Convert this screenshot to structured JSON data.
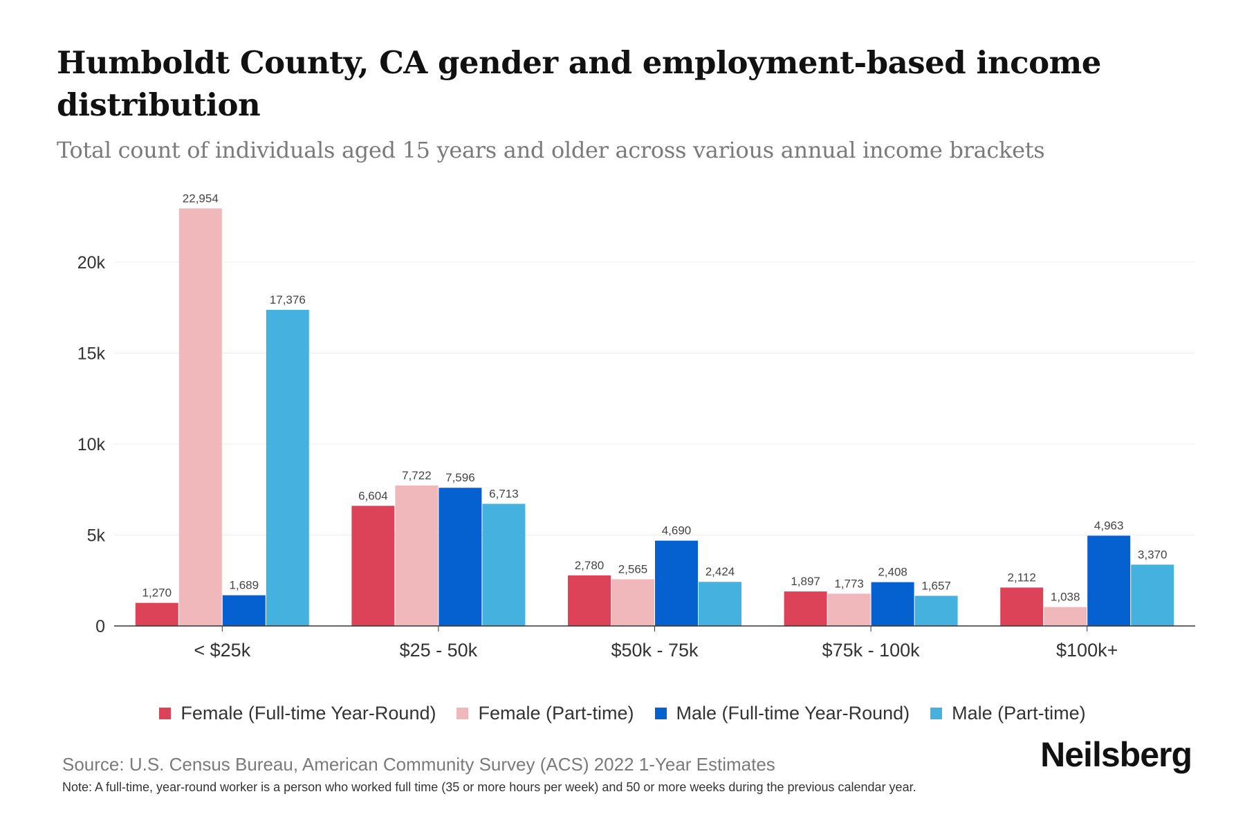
{
  "header": {
    "title": "Humboldt County, CA gender and employment-based income distribution",
    "subtitle": "Total count of individuals aged 15 years and older across various annual income brackets"
  },
  "footer": {
    "source": "Source: U.S. Census Bureau, American Community Survey (ACS) 2022 1-Year Estimates",
    "note": "Note: A full-time, year-round worker is a person who worked full time (35 or more hours per week) and 50 or more weeks during the previous calendar year.",
    "brand": "Neilsberg"
  },
  "chart_data": {
    "type": "bar",
    "title": "Humboldt County, CA gender and employment-based income distribution",
    "subtitle": "Total count of individuals aged 15 years and older across various annual income brackets",
    "xlabel": "",
    "ylabel": "",
    "categories": [
      "< $25k",
      "$25 - 50k",
      "$50k - 75k",
      "$75k - 100k",
      "$100k+"
    ],
    "series": [
      {
        "name": "Female (Full-time Year-Round)",
        "color": "#dc4359",
        "values": [
          1270,
          6604,
          2780,
          1897,
          2112
        ],
        "labels": [
          "1,270",
          "6,604",
          "2,780",
          "1,897",
          "2,112"
        ]
      },
      {
        "name": "Female (Part-time)",
        "color": "#f0b8bb",
        "values": [
          22954,
          7722,
          2565,
          1773,
          1038
        ],
        "labels": [
          "22,954",
          "7,722",
          "2,565",
          "1,773",
          "1,038"
        ]
      },
      {
        "name": "Male (Full-time Year-Round)",
        "color": "#0461cf",
        "values": [
          1689,
          7596,
          4690,
          2408,
          4963
        ],
        "labels": [
          "1,689",
          "7,596",
          "4,690",
          "2,408",
          "4,963"
        ]
      },
      {
        "name": "Male (Part-time)",
        "color": "#45b1df",
        "values": [
          17376,
          6713,
          2424,
          1657,
          3370
        ],
        "labels": [
          "17,376",
          "6,713",
          "2,424",
          "1,657",
          "3,370"
        ]
      }
    ],
    "y_ticks": [
      0,
      5000,
      10000,
      15000,
      20000
    ],
    "y_tick_labels": [
      "0",
      "5k",
      "10k",
      "15k",
      "20k"
    ],
    "ylim": [
      0,
      23000
    ],
    "grid": true,
    "legend_position": "bottom"
  }
}
